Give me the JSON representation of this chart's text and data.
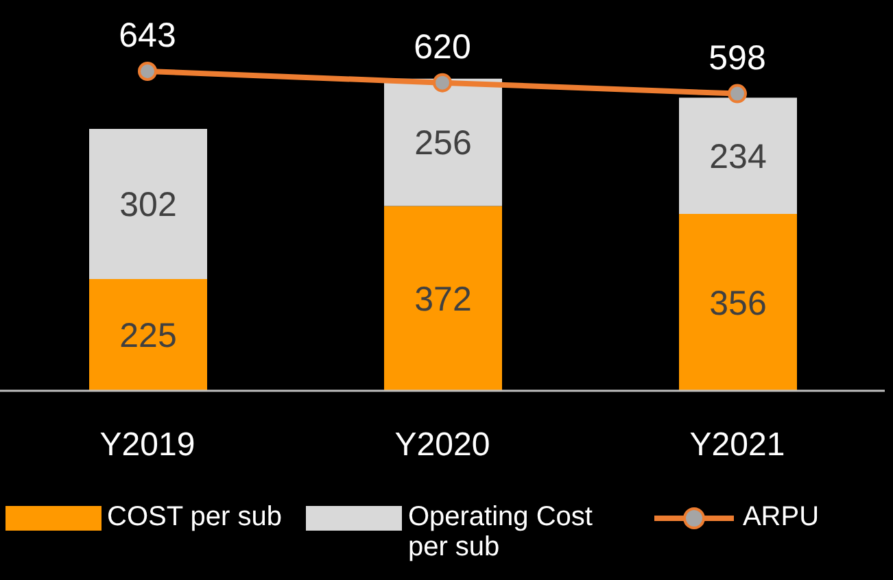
{
  "chart_data": {
    "type": "bar",
    "stacked": true,
    "categories": [
      "Y2019",
      "Y2020",
      "Y2021"
    ],
    "series": [
      {
        "name": "COST per sub",
        "color": "#ff9900",
        "values": [
          225,
          372,
          356
        ]
      },
      {
        "name": "Operating Cost per sub",
        "color": "#d9d9d9",
        "values": [
          302,
          256,
          234
        ]
      },
      {
        "name": "ARPU",
        "type": "line",
        "color": "#ed7d31",
        "values": [
          643,
          620,
          598
        ]
      }
    ],
    "marker": "circle",
    "data_labels": true,
    "legend": "bottom"
  }
}
